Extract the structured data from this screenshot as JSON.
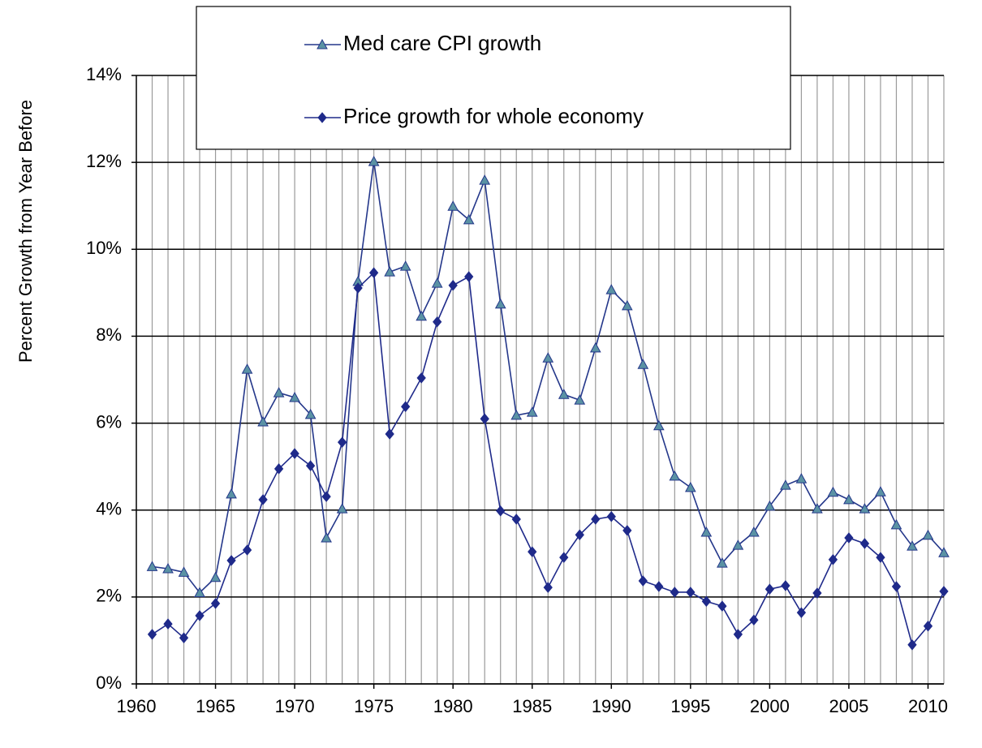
{
  "chart_data": {
    "type": "line",
    "y_label": "Percent Growth from Year Before",
    "x": [
      1961,
      1962,
      1963,
      1964,
      1965,
      1966,
      1967,
      1968,
      1969,
      1970,
      1971,
      1972,
      1973,
      1974,
      1975,
      1976,
      1977,
      1978,
      1979,
      1980,
      1981,
      1982,
      1983,
      1984,
      1985,
      1986,
      1987,
      1988,
      1989,
      1990,
      1991,
      1992,
      1993,
      1994,
      1995,
      1996,
      1997,
      1998,
      1999,
      2000,
      2001,
      2002,
      2003,
      2004,
      2005,
      2006,
      2007,
      2008,
      2009,
      2010,
      2011
    ],
    "series": [
      {
        "name": "Med care CPI growth",
        "color": "#24378a",
        "marker": "triangle",
        "marker_color": "#5a92a4",
        "values": [
          2.7,
          2.65,
          2.57,
          2.1,
          2.45,
          4.37,
          7.24,
          6.03,
          6.7,
          6.59,
          6.2,
          3.36,
          4.03,
          9.26,
          12.02,
          9.48,
          9.61,
          8.46,
          9.22,
          10.99,
          10.68,
          11.59,
          8.74,
          6.18,
          6.25,
          7.5,
          6.66,
          6.53,
          7.73,
          9.07,
          8.7,
          7.35,
          5.94,
          4.78,
          4.52,
          3.49,
          2.78,
          3.19,
          3.49,
          4.09,
          4.57,
          4.72,
          4.03,
          4.41,
          4.24,
          4.03,
          4.42,
          3.66,
          3.17,
          3.42,
          3.02
        ]
      },
      {
        "name": "Price growth for whole economy",
        "color": "#1f2a8a",
        "marker": "diamond",
        "marker_color": "#1f2a8a",
        "values": [
          1.14,
          1.38,
          1.06,
          1.57,
          1.85,
          2.84,
          3.08,
          4.24,
          4.95,
          5.3,
          5.02,
          4.31,
          5.56,
          9.11,
          9.46,
          5.75,
          6.38,
          7.04,
          8.33,
          9.17,
          9.37,
          6.1,
          3.98,
          3.79,
          3.04,
          2.22,
          2.91,
          3.43,
          3.79,
          3.85,
          3.53,
          2.37,
          2.24,
          2.11,
          2.11,
          1.9,
          1.79,
          1.14,
          1.47,
          2.18,
          2.26,
          1.64,
          2.09,
          2.86,
          3.36,
          3.23,
          2.91,
          2.24,
          0.9,
          1.33,
          2.13
        ]
      }
    ],
    "xlim": [
      1960,
      2011
    ],
    "xticks": [
      1960,
      1965,
      1970,
      1975,
      1980,
      1985,
      1990,
      1995,
      2000,
      2005,
      2010
    ],
    "ylim": [
      0,
      14
    ],
    "yticks": [
      {
        "value": 0,
        "label": "0%"
      },
      {
        "value": 2,
        "label": "2%"
      },
      {
        "value": 4,
        "label": "4%"
      },
      {
        "value": 6,
        "label": "6%"
      },
      {
        "value": 8,
        "label": "8%"
      },
      {
        "value": 10,
        "label": "10%"
      },
      {
        "value": 12,
        "label": "12%"
      },
      {
        "value": 14,
        "label": "14%"
      }
    ],
    "grid": true,
    "legend": "top"
  }
}
